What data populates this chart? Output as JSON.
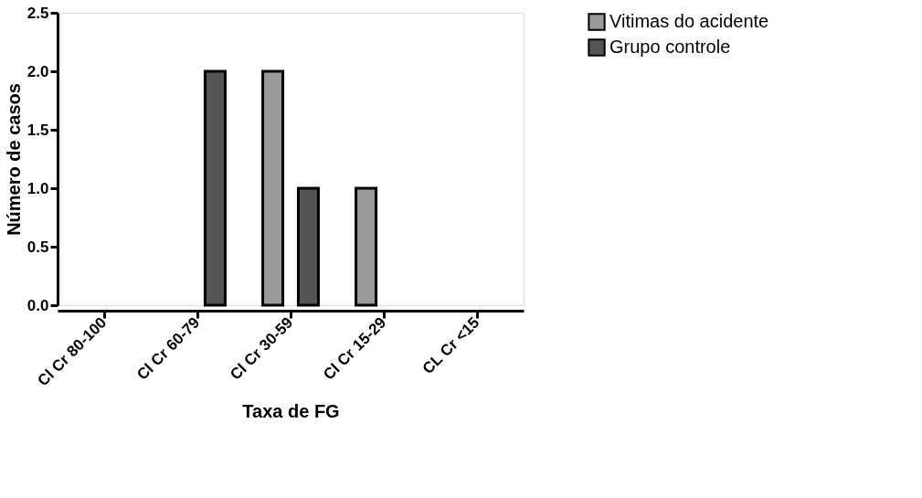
{
  "chart_data": {
    "type": "bar",
    "xlabel": "Taxa de FG",
    "ylabel": "Número de casos",
    "categories": [
      "Cl Cr 80-100",
      "Cl Cr 60-79",
      "Cl Cr 30-59",
      "Cl Cr 15-29",
      "CL Cr <15"
    ],
    "series": [
      {
        "name": "Vitimas do acidente",
        "color": "#9a9a9a",
        "values": [
          0,
          0,
          2,
          1,
          0
        ]
      },
      {
        "name": "Grupo controle",
        "color": "#555555",
        "values": [
          0,
          2,
          1,
          0,
          0
        ]
      }
    ],
    "ylim": [
      0,
      2.5
    ],
    "yticks": [
      {
        "value": 0,
        "label": "0.0"
      },
      {
        "value": 0.5,
        "label": "0.5"
      },
      {
        "value": 1,
        "label": "1.0"
      },
      {
        "value": 1.5,
        "label": "1.5"
      },
      {
        "value": 2,
        "label": "2.0"
      },
      {
        "value": 2.5,
        "label": "2.5"
      }
    ],
    "grid": false,
    "legend": "top right"
  }
}
